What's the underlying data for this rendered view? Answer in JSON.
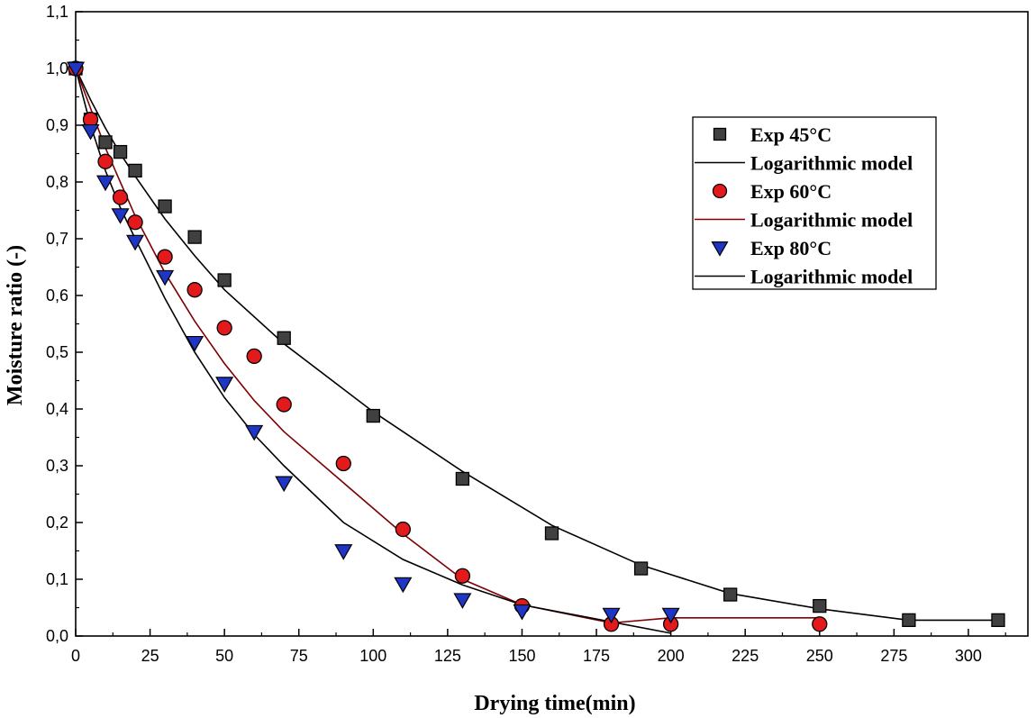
{
  "chart_data": {
    "type": "scatter",
    "title": "",
    "xlabel": "Drying time(min)",
    "ylabel": "Moisture ratio (-)",
    "xlim": [
      0,
      320
    ],
    "ylim": [
      0,
      1.1
    ],
    "xticks": [
      0,
      25,
      50,
      75,
      100,
      125,
      150,
      175,
      200,
      225,
      250,
      275,
      300
    ],
    "xtick_labels": [
      "0",
      "25",
      "50",
      "75",
      "100",
      "125",
      "150",
      "175",
      "200",
      "225",
      "250",
      "275",
      "300"
    ],
    "yticks": [
      0,
      0.1,
      0.2,
      0.3,
      0.4,
      0.5,
      0.6,
      0.7,
      0.8,
      0.9,
      1.0,
      1.1
    ],
    "ytick_labels": [
      "0,0",
      "0,1",
      "0,2",
      "0,3",
      "0,4",
      "0,5",
      "0,6",
      "0,7",
      "0,8",
      "0,9",
      "1,0",
      "1,1"
    ],
    "grid": false,
    "legend_position": "top-right",
    "series": [
      {
        "name": "Exp 45°C",
        "kind": "markers",
        "marker": "square",
        "color": "#404040",
        "x": [
          0,
          5,
          10,
          15,
          20,
          30,
          40,
          50,
          70,
          100,
          130,
          160,
          190,
          220,
          250,
          280,
          310
        ],
        "y": [
          1.0,
          0.91,
          0.87,
          0.853,
          0.82,
          0.757,
          0.703,
          0.627,
          0.525,
          0.388,
          0.277,
          0.181,
          0.119,
          0.073,
          0.053,
          0.028,
          0.028
        ]
      },
      {
        "name": "Logarithmic model",
        "kind": "line",
        "color": "#000000",
        "x": [
          0,
          5,
          10,
          15,
          20,
          30,
          40,
          50,
          70,
          100,
          130,
          160,
          190,
          220,
          250,
          280,
          310
        ],
        "y": [
          1.0,
          0.945,
          0.895,
          0.85,
          0.81,
          0.735,
          0.67,
          0.61,
          0.515,
          0.395,
          0.29,
          0.195,
          0.125,
          0.075,
          0.048,
          0.028,
          0.028
        ]
      },
      {
        "name": "Exp 60°C",
        "kind": "markers",
        "marker": "circle",
        "color": "#e31a1c",
        "x": [
          0,
          5,
          10,
          15,
          20,
          30,
          40,
          50,
          60,
          70,
          90,
          110,
          130,
          150,
          180,
          200,
          250
        ],
        "y": [
          1.0,
          0.91,
          0.836,
          0.773,
          0.729,
          0.668,
          0.61,
          0.543,
          0.493,
          0.408,
          0.304,
          0.188,
          0.106,
          0.053,
          0.021,
          0.021,
          0.021
        ]
      },
      {
        "name": "Logarithmic model",
        "kind": "line",
        "color": "#7f0000",
        "x": [
          0,
          5,
          10,
          15,
          20,
          30,
          40,
          50,
          60,
          70,
          90,
          110,
          130,
          150,
          180,
          200,
          250
        ],
        "y": [
          1.0,
          0.93,
          0.86,
          0.8,
          0.74,
          0.64,
          0.555,
          0.48,
          0.415,
          0.36,
          0.27,
          0.18,
          0.1,
          0.055,
          0.023,
          0.032,
          0.032
        ]
      },
      {
        "name": "Exp 80°C",
        "kind": "markers",
        "marker": "triangle-down",
        "color": "#1f35c4",
        "x": [
          0,
          5,
          10,
          15,
          20,
          30,
          40,
          50,
          60,
          70,
          90,
          110,
          130,
          150,
          180,
          200
        ],
        "y": [
          1.0,
          0.89,
          0.8,
          0.742,
          0.695,
          0.633,
          0.517,
          0.445,
          0.36,
          0.27,
          0.15,
          0.092,
          0.064,
          0.044,
          0.038,
          0.038
        ]
      },
      {
        "name": "Logarithmic model",
        "kind": "line",
        "color": "#000000",
        "x": [
          0,
          5,
          10,
          15,
          20,
          30,
          40,
          50,
          60,
          70,
          90,
          110,
          130,
          150,
          180,
          200
        ],
        "y": [
          1.0,
          0.9,
          0.82,
          0.755,
          0.7,
          0.595,
          0.5,
          0.42,
          0.355,
          0.3,
          0.2,
          0.135,
          0.09,
          0.055,
          0.025,
          0.005
        ]
      }
    ]
  }
}
